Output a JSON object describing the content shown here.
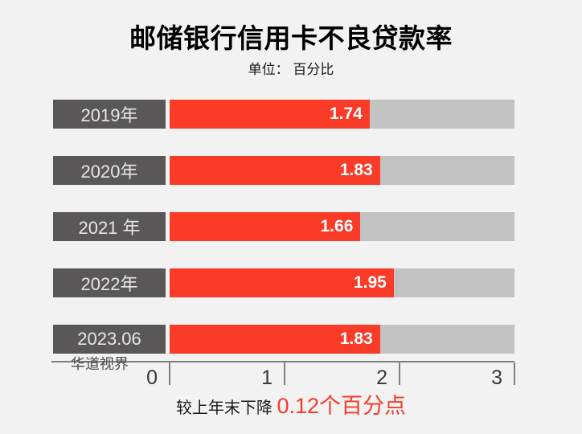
{
  "title": "邮储银行信用卡不良贷款率",
  "subtitle": "单位： 百分比",
  "watermark": "华道视界",
  "note": {
    "prefix": "较上年末下降 ",
    "highlight": "0.12个百分点"
  },
  "colors": {
    "bar_red": "#f93b28",
    "track_gray": "#c3c2c2",
    "label_box_gray": "#595757",
    "axis_gray": "#7f7f7f",
    "background": "#f2f2f2"
  },
  "chart_data": {
    "type": "bar",
    "orientation": "horizontal",
    "title": "邮储银行信用卡不良贷款率",
    "unit_label": "单位： 百分比",
    "categories": [
      "2019年",
      "2020年",
      "2021 年",
      "2022年",
      "2023.06"
    ],
    "values": [
      1.74,
      1.83,
      1.66,
      1.95,
      1.83
    ],
    "xlabel": "",
    "ylabel": "",
    "xlim": [
      0,
      3
    ],
    "xticks": [
      0,
      1,
      2,
      3
    ],
    "grid": false,
    "legend": false,
    "annotation": "较上年末下降 0.12个百分点"
  }
}
